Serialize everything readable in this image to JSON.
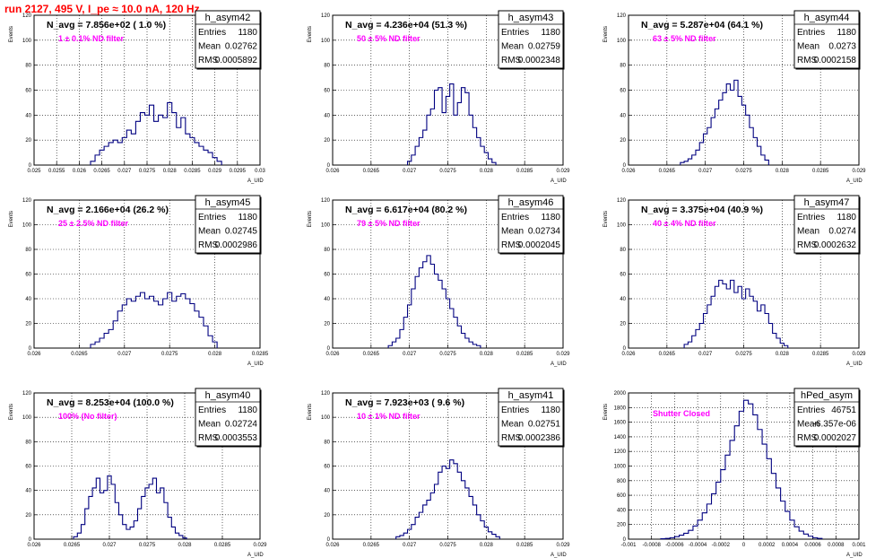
{
  "run_title": "run 2127,   495 V, I_pe ≈ 10.0 nA, 120 Hz",
  "chart_data": [
    {
      "type": "histogram",
      "hist_name": "h_asym42",
      "navg_label": "N_avg = 7.856e+02 ( 1.0 %)",
      "filter_label": "1 ± 0.1% ND filter",
      "stats": {
        "entries": "1180",
        "mean": "0.02762",
        "rms": "0.0005892"
      },
      "xlim": [
        0.025,
        0.03
      ],
      "ylim": [
        0,
        120
      ],
      "xticks": [
        "0.025",
        "0.0255",
        "0.026",
        "0.0265",
        "0.027",
        "0.0275",
        "0.028",
        "0.0285",
        "0.029",
        "0.0295",
        "0.03"
      ],
      "yticks": [
        0,
        20,
        40,
        60,
        80,
        100,
        120
      ],
      "xlabel": "A_UID",
      "ylabel": "Events",
      "x": [
        0.0263,
        0.0264,
        0.0265,
        0.0266,
        0.0267,
        0.0268,
        0.0269,
        0.027,
        0.0271,
        0.0272,
        0.0273,
        0.0274,
        0.0275,
        0.0276,
        0.0277,
        0.0278,
        0.0279,
        0.028,
        0.0281,
        0.0282,
        0.0283,
        0.0284,
        0.0285,
        0.0286,
        0.0287,
        0.0288,
        0.0289,
        0.029,
        0.0291
      ],
      "values": [
        3,
        8,
        12,
        15,
        18,
        20,
        18,
        22,
        28,
        25,
        35,
        42,
        40,
        48,
        35,
        40,
        38,
        50,
        42,
        30,
        38,
        25,
        22,
        18,
        15,
        12,
        10,
        6,
        3
      ]
    },
    {
      "type": "histogram",
      "hist_name": "h_asym43",
      "navg_label": "N_avg = 4.236e+04 (51.3 %)",
      "filter_label": "50 ± 5% ND filter",
      "stats": {
        "entries": "1180",
        "mean": "0.02759",
        "rms": "0.0002348"
      },
      "xlim": [
        0.026,
        0.029
      ],
      "ylim": [
        0,
        120
      ],
      "xticks": [
        "0.026",
        "0.0265",
        "0.027",
        "0.0275",
        "0.028",
        "0.0285",
        "0.029"
      ],
      "yticks": [
        0,
        20,
        40,
        60,
        80,
        100,
        120
      ],
      "xlabel": "A_UID",
      "ylabel": "Events",
      "x": [
        0.027,
        0.02705,
        0.0271,
        0.02715,
        0.0272,
        0.02725,
        0.0273,
        0.02735,
        0.0274,
        0.02745,
        0.0275,
        0.02755,
        0.0276,
        0.02765,
        0.0277,
        0.02775,
        0.0278,
        0.02785,
        0.0279,
        0.02795,
        0.028,
        0.02805,
        0.0281
      ],
      "values": [
        3,
        8,
        15,
        22,
        28,
        40,
        45,
        60,
        62,
        42,
        55,
        65,
        40,
        50,
        62,
        58,
        40,
        30,
        22,
        15,
        10,
        5,
        2
      ]
    },
    {
      "type": "histogram",
      "hist_name": "h_asym44",
      "navg_label": "N_avg = 5.287e+04 (64.1 %)",
      "filter_label": "63 ± 5% ND filter",
      "stats": {
        "entries": "1180",
        "mean": "0.0273",
        "rms": "0.0002158"
      },
      "xlim": [
        0.026,
        0.029
      ],
      "ylim": [
        0,
        120
      ],
      "xticks": [
        "0.026",
        "0.0265",
        "0.027",
        "0.0275",
        "0.028",
        "0.0285",
        "0.029"
      ],
      "yticks": [
        0,
        20,
        40,
        60,
        80,
        100,
        120
      ],
      "xlabel": "A_UID",
      "ylabel": "Events",
      "x": [
        0.0267,
        0.02675,
        0.0268,
        0.02685,
        0.0269,
        0.02695,
        0.027,
        0.02705,
        0.0271,
        0.02715,
        0.0272,
        0.02725,
        0.0273,
        0.02735,
        0.0274,
        0.02745,
        0.0275,
        0.02755,
        0.0276,
        0.02765,
        0.0277,
        0.02775,
        0.0278
      ],
      "values": [
        2,
        3,
        5,
        8,
        12,
        18,
        25,
        30,
        38,
        45,
        52,
        58,
        65,
        60,
        68,
        55,
        48,
        40,
        30,
        22,
        15,
        8,
        4
      ]
    },
    {
      "type": "histogram",
      "hist_name": "h_asym45",
      "navg_label": "N_avg = 2.166e+04 (26.2 %)",
      "filter_label": "25 ± 2.5% ND filter",
      "stats": {
        "entries": "1180",
        "mean": "0.02745",
        "rms": "0.0002986"
      },
      "xlim": [
        0.026,
        0.0285
      ],
      "ylim": [
        0,
        120
      ],
      "xticks": [
        "0.026",
        "0.0265",
        "0.027",
        "0.0275",
        "0.028",
        "0.0285"
      ],
      "yticks": [
        0,
        20,
        40,
        60,
        80,
        100,
        120
      ],
      "xlabel": "A_UID",
      "ylabel": "Events",
      "x": [
        0.02665,
        0.0267,
        0.02675,
        0.0268,
        0.02685,
        0.0269,
        0.02695,
        0.027,
        0.02705,
        0.0271,
        0.02715,
        0.0272,
        0.02725,
        0.0273,
        0.02735,
        0.0274,
        0.02745,
        0.0275,
        0.02755,
        0.0276,
        0.02765,
        0.0277,
        0.02775,
        0.0278,
        0.02785,
        0.0279,
        0.02795,
        0.028
      ],
      "values": [
        3,
        5,
        8,
        12,
        15,
        22,
        30,
        35,
        40,
        38,
        42,
        45,
        40,
        42,
        38,
        35,
        40,
        45,
        38,
        42,
        44,
        40,
        36,
        30,
        25,
        18,
        10,
        5
      ]
    },
    {
      "type": "histogram",
      "hist_name": "h_asym46",
      "navg_label": "N_avg = 6.617e+04 (80.2 %)",
      "filter_label": "79 ± 5% ND filter",
      "stats": {
        "entries": "1180",
        "mean": "0.02734",
        "rms": "0.0002045"
      },
      "xlim": [
        0.026,
        0.029
      ],
      "ylim": [
        0,
        120
      ],
      "xticks": [
        "0.026",
        "0.0265",
        "0.027",
        "0.0275",
        "0.028",
        "0.0285",
        "0.029"
      ],
      "yticks": [
        0,
        20,
        40,
        60,
        80,
        100,
        120
      ],
      "xlabel": "A_UID",
      "ylabel": "Events",
      "x": [
        0.02675,
        0.0268,
        0.02685,
        0.0269,
        0.02695,
        0.027,
        0.02705,
        0.0271,
        0.02715,
        0.0272,
        0.02725,
        0.0273,
        0.02735,
        0.0274,
        0.02745,
        0.0275,
        0.02755,
        0.0276,
        0.02765,
        0.0277,
        0.02775,
        0.0278,
        0.02785,
        0.0279
      ],
      "values": [
        2,
        5,
        8,
        15,
        25,
        35,
        48,
        58,
        65,
        70,
        75,
        68,
        60,
        55,
        48,
        40,
        32,
        25,
        18,
        12,
        8,
        5,
        3,
        2
      ]
    },
    {
      "type": "histogram",
      "hist_name": "h_asym47",
      "navg_label": "N_avg = 3.375e+04 (40.9 %)",
      "filter_label": "40 ± 4% ND filter",
      "stats": {
        "entries": "1180",
        "mean": "0.0274",
        "rms": "0.0002632"
      },
      "xlim": [
        0.026,
        0.029
      ],
      "ylim": [
        0,
        120
      ],
      "xticks": [
        "0.026",
        "0.0265",
        "0.027",
        "0.0275",
        "0.028",
        "0.0285",
        "0.029"
      ],
      "yticks": [
        0,
        20,
        40,
        60,
        80,
        100,
        120
      ],
      "xlabel": "A_UID",
      "ylabel": "Events",
      "x": [
        0.02675,
        0.0268,
        0.02685,
        0.0269,
        0.02695,
        0.027,
        0.02705,
        0.0271,
        0.02715,
        0.0272,
        0.02725,
        0.0273,
        0.02735,
        0.0274,
        0.02745,
        0.0275,
        0.02755,
        0.0276,
        0.02765,
        0.0277,
        0.02775,
        0.0278,
        0.02785,
        0.0279,
        0.02795,
        0.028,
        0.02805
      ],
      "values": [
        3,
        5,
        10,
        15,
        20,
        28,
        35,
        42,
        50,
        55,
        52,
        48,
        55,
        45,
        50,
        40,
        48,
        42,
        38,
        30,
        35,
        28,
        20,
        12,
        8,
        4,
        2
      ]
    },
    {
      "type": "histogram",
      "hist_name": "h_asym40",
      "navg_label": "N_avg = 8.253e+04 (100.0 %)",
      "filter_label": "100% (No filter)",
      "stats": {
        "entries": "1180",
        "mean": "0.02724",
        "rms": "0.0003553"
      },
      "xlim": [
        0.026,
        0.029
      ],
      "ylim": [
        0,
        120
      ],
      "xticks": [
        "0.026",
        "0.0265",
        "0.027",
        "0.0275",
        "0.028",
        "0.0285",
        "0.029"
      ],
      "yticks": [
        0,
        20,
        40,
        60,
        80,
        100,
        120
      ],
      "xlabel": "A_UID",
      "ylabel": "Events",
      "x": [
        0.02655,
        0.0266,
        0.02665,
        0.0267,
        0.02675,
        0.0268,
        0.02685,
        0.0269,
        0.02695,
        0.027,
        0.02705,
        0.0271,
        0.02715,
        0.0272,
        0.02725,
        0.0273,
        0.02735,
        0.0274,
        0.02745,
        0.0275,
        0.02755,
        0.0276,
        0.02765,
        0.0277,
        0.02775,
        0.0278,
        0.02785,
        0.0279,
        0.02795,
        0.028
      ],
      "values": [
        2,
        5,
        12,
        25,
        35,
        42,
        50,
        38,
        40,
        52,
        45,
        30,
        20,
        12,
        8,
        10,
        15,
        25,
        35,
        42,
        45,
        50,
        38,
        42,
        30,
        18,
        10,
        5,
        3,
        1
      ]
    },
    {
      "type": "histogram",
      "hist_name": "h_asym41",
      "navg_label": "N_avg = 7.923e+03 ( 9.6 %)",
      "filter_label": "10 ± 1% ND filter",
      "stats": {
        "entries": "1180",
        "mean": "0.02751",
        "rms": "0.0002386"
      },
      "xlim": [
        0.026,
        0.029
      ],
      "ylim": [
        0,
        120
      ],
      "xticks": [
        "0.026",
        "0.0265",
        "0.027",
        "0.0275",
        "0.028",
        "0.0285",
        "0.029"
      ],
      "yticks": [
        0,
        20,
        40,
        60,
        80,
        100,
        120
      ],
      "xlabel": "A_UID",
      "ylabel": "Events",
      "x": [
        0.02685,
        0.0269,
        0.02695,
        0.027,
        0.02705,
        0.0271,
        0.02715,
        0.0272,
        0.02725,
        0.0273,
        0.02735,
        0.0274,
        0.02745,
        0.0275,
        0.02755,
        0.0276,
        0.02765,
        0.0277,
        0.02775,
        0.0278,
        0.02785,
        0.0279,
        0.02795,
        0.028,
        0.02805,
        0.0281,
        0.02815
      ],
      "values": [
        2,
        3,
        5,
        8,
        12,
        18,
        22,
        28,
        32,
        38,
        45,
        55,
        60,
        58,
        65,
        62,
        55,
        48,
        42,
        35,
        28,
        20,
        15,
        10,
        6,
        4,
        2
      ]
    },
    {
      "type": "histogram",
      "hist_name": "hPed_asym",
      "navg_label": "",
      "filter_label": "Shutter Closed",
      "stats": {
        "entries": "46751",
        "mean": "-6.357e-06",
        "rms": "0.0002027"
      },
      "xlim": [
        -0.001,
        0.001
      ],
      "ylim": [
        0,
        2000
      ],
      "xticks": [
        "-0.001",
        "-0.0008",
        "-0.0006",
        "-0.0004",
        "-0.0002",
        "0",
        "0.0002",
        "0.0004",
        "0.0006",
        "0.0008",
        "0.001"
      ],
      "yticks": [
        0,
        200,
        400,
        600,
        800,
        1000,
        1200,
        1400,
        1600,
        1800,
        2000
      ],
      "xlabel": "A_UID",
      "ylabel": "Events",
      "x": [
        -0.0007,
        -0.00066,
        -0.00062,
        -0.00058,
        -0.00054,
        -0.0005,
        -0.00046,
        -0.00042,
        -0.00038,
        -0.00034,
        -0.0003,
        -0.00026,
        -0.00022,
        -0.00018,
        -0.00014,
        -0.0001,
        -6e-05,
        -2e-05,
        2e-05,
        6e-05,
        0.0001,
        0.00014,
        0.00018,
        0.00022,
        0.00026,
        0.0003,
        0.00034,
        0.00038,
        0.00042,
        0.00046,
        0.0005,
        0.00054,
        0.00058,
        0.00062,
        0.00066
      ],
      "values": [
        5,
        10,
        20,
        35,
        55,
        80,
        120,
        180,
        260,
        360,
        480,
        620,
        780,
        950,
        1150,
        1350,
        1550,
        1750,
        1900,
        1850,
        1700,
        1500,
        1300,
        1100,
        900,
        700,
        520,
        380,
        260,
        170,
        110,
        70,
        40,
        20,
        10
      ]
    }
  ]
}
